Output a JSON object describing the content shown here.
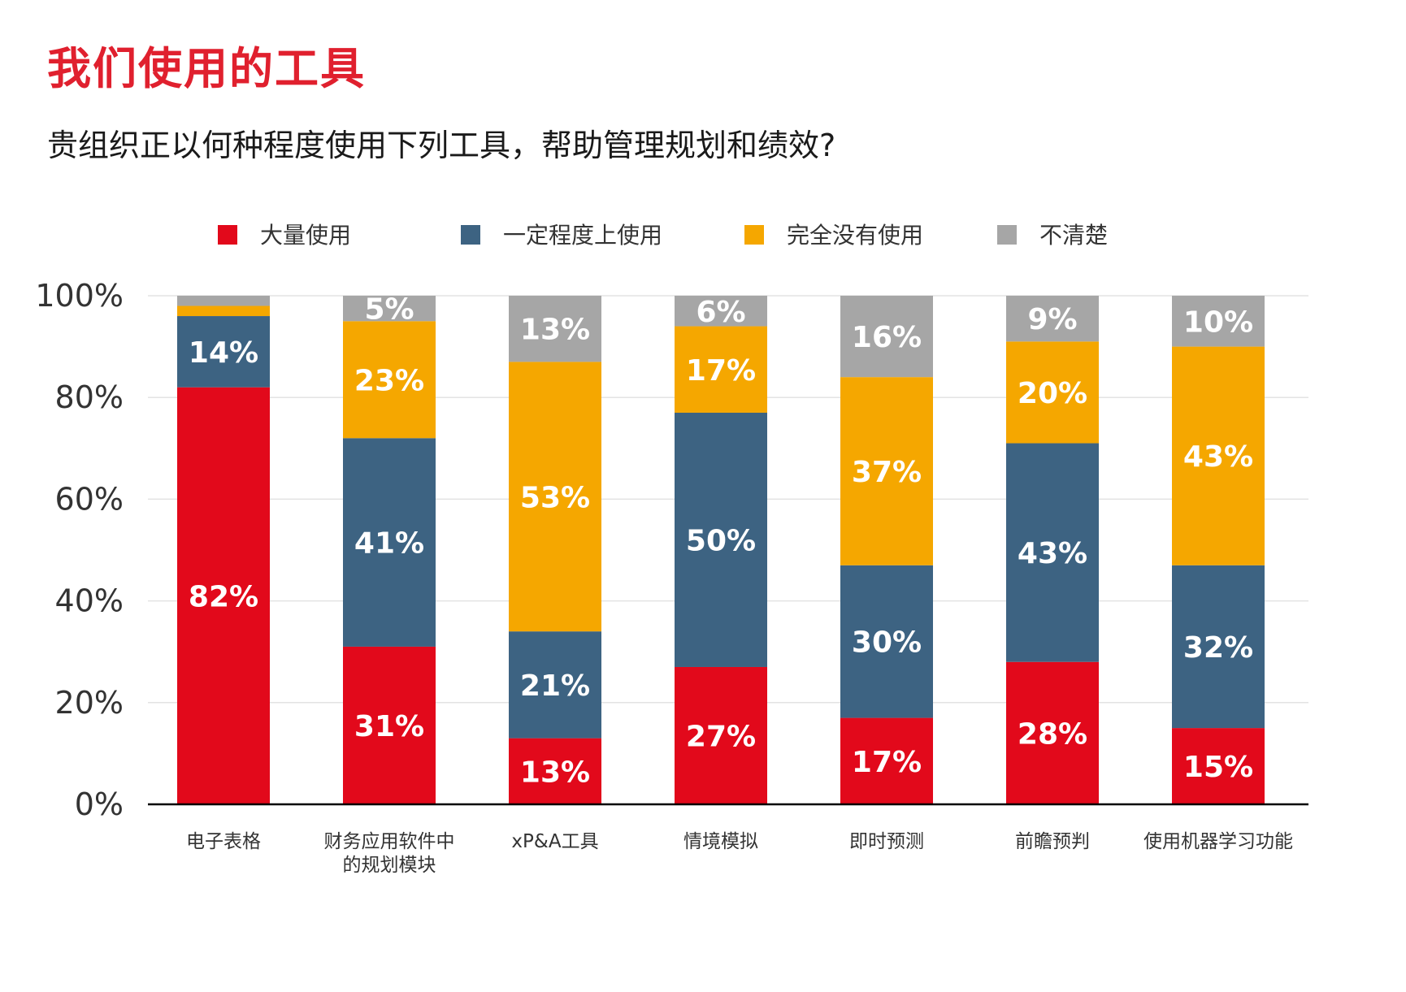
{
  "header": {
    "title": "我们使用的工具",
    "subtitle": "贵组织正以何种程度使用下列工具，帮助管理规划和绩效?"
  },
  "chart_data": {
    "type": "bar",
    "stacked": true,
    "categories": [
      [
        "电子表格"
      ],
      [
        "财务应用软件中",
        "的规划模块"
      ],
      [
        "xP&A工具"
      ],
      [
        "情境模拟"
      ],
      [
        "即时预测"
      ],
      [
        "前瞻预判"
      ],
      [
        "使用机器学习功能"
      ]
    ],
    "series": [
      {
        "name": "大量使用",
        "color": "#e2091b",
        "values": [
          82,
          31,
          13,
          27,
          17,
          28,
          15
        ]
      },
      {
        "name": "一定程度上使用",
        "color": "#3d6382",
        "values": [
          14,
          41,
          21,
          50,
          30,
          43,
          32
        ]
      },
      {
        "name": "完全没有使用",
        "color": "#f5a700",
        "values": [
          2,
          23,
          53,
          17,
          37,
          20,
          43
        ]
      },
      {
        "name": "不清楚",
        "color": "#a6a6a6",
        "values": [
          2,
          5,
          13,
          6,
          16,
          9,
          10
        ]
      }
    ],
    "data_labels": [
      [
        "82%",
        "31%",
        "13%",
        "27%",
        "17%",
        "28%",
        "15%"
      ],
      [
        "14%",
        "41%",
        "21%",
        "50%",
        "30%",
        "43%",
        "32%"
      ],
      [
        "",
        "23%",
        "53%",
        "17%",
        "37%",
        "20%",
        "43%"
      ],
      [
        "",
        "5%",
        "13%",
        "6%",
        "16%",
        "9%",
        "10%"
      ]
    ],
    "ylim": [
      0,
      100
    ],
    "yticks": [
      "0%",
      "20%",
      "40%",
      "60%",
      "80%",
      "100%"
    ],
    "ytick_values": [
      0,
      20,
      40,
      60,
      80,
      100
    ],
    "grid": true,
    "legend_position": "top"
  }
}
